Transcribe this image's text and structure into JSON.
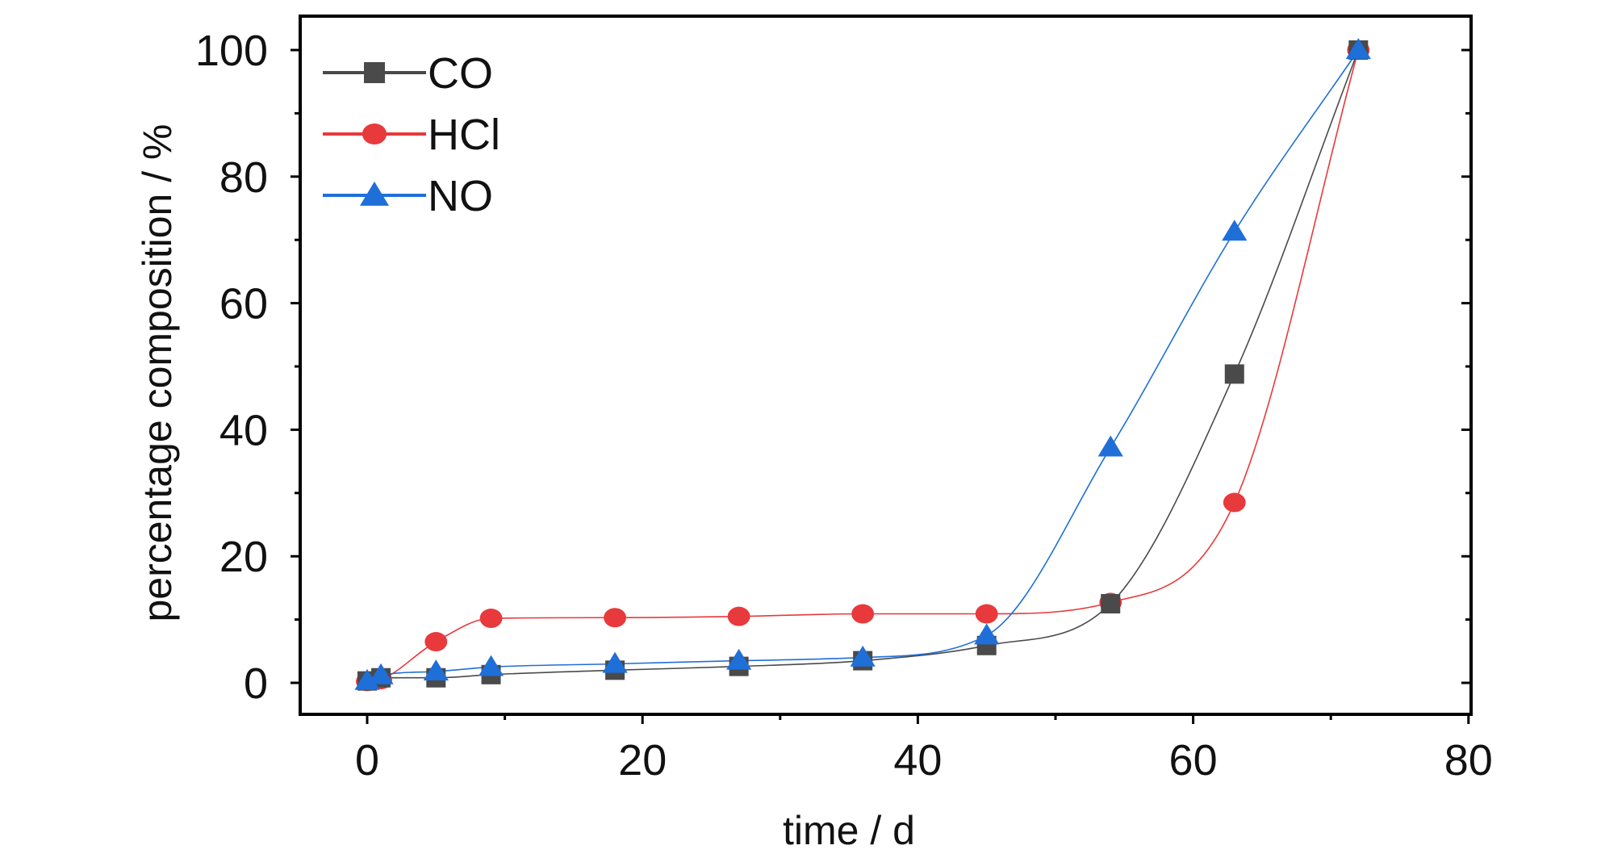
{
  "chart_data": {
    "type": "line",
    "title": "",
    "xlabel": "time / d",
    "ylabel": "percentage composition / %",
    "xlim": [
      -5,
      80
    ],
    "ylim": [
      -5,
      105
    ],
    "xticks": [
      0,
      20,
      40,
      60,
      80
    ],
    "yticks": [
      0,
      20,
      40,
      60,
      80,
      100
    ],
    "x_tick_labels": [
      "0",
      "20",
      "40",
      "60",
      "80"
    ],
    "y_tick_labels": [
      "0",
      "20",
      "40",
      "60",
      "80",
      "100"
    ],
    "grid": false,
    "legend_position": "top-left",
    "series": [
      {
        "name": "CO",
        "color": "#4a4a4a",
        "marker": "square",
        "x": [
          0,
          1,
          5,
          9,
          18,
          27,
          36,
          45,
          54,
          63,
          72
        ],
        "y": [
          0.3,
          0.8,
          0.8,
          1.3,
          2.0,
          2.6,
          3.5,
          5.9,
          12.5,
          48.8,
          100
        ]
      },
      {
        "name": "HCl",
        "color": "#e8393c",
        "marker": "circle",
        "x": [
          0,
          1,
          5,
          9,
          18,
          27,
          36,
          45,
          54,
          63,
          72
        ],
        "y": [
          0.2,
          0.5,
          6.5,
          10.2,
          10.3,
          10.5,
          10.9,
          10.9,
          12.7,
          28.5,
          100
        ]
      },
      {
        "name": "NO",
        "color": "#1f6fd8",
        "marker": "triangle",
        "x": [
          0,
          1,
          5,
          9,
          18,
          27,
          36,
          45,
          54,
          63,
          72
        ],
        "y": [
          0.3,
          1.2,
          1.8,
          2.5,
          3.0,
          3.5,
          4.0,
          7.5,
          37.2,
          71.3,
          100
        ]
      }
    ]
  }
}
